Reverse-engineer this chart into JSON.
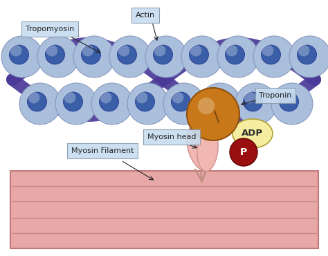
{
  "bg_color": "#ffffff",
  "actin_large_color": "#aabfdc",
  "actin_large_edge": "#8090b8",
  "actin_small_color": "#3a5fa8",
  "actin_small_edge": "#1a2888",
  "tropomyosin_color": "#4a3898",
  "troponin_color": "#c87818",
  "troponin_edge": "#905010",
  "myosin_filament_color": "#e8a8a8",
  "myosin_filament_edge": "#c07878",
  "myosin_filament_stripe": "#c88888",
  "myosin_head_color": "#f0b8b0",
  "myosin_head_edge": "#d09090",
  "myosin_stalk_color": "#c09080",
  "adp_color": "#f5eea0",
  "adp_edge": "#b0a030",
  "p_color": "#9a1010",
  "p_edge": "#600000",
  "label_bg": "#c8ddf0",
  "label_edge": "#8899aa",
  "label_text": "#222222",
  "arrow_color": "#222222",
  "labels": {
    "tropomyosin": "Tropomyosin",
    "actin": "Actin",
    "troponin": "Troponin",
    "myosin_filament": "Myosin Filament",
    "myosin_head": "Myosin head",
    "adp": "ADP",
    "p": "P"
  },
  "fig_w": 4.74,
  "fig_h": 3.7,
  "dpi": 100
}
